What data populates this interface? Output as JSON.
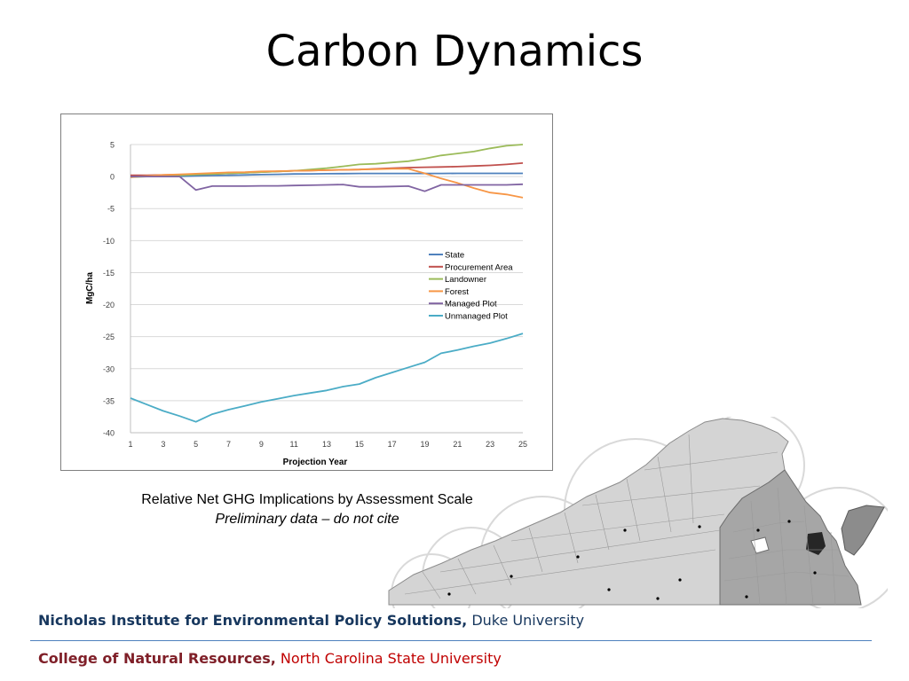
{
  "slide": {
    "title": "Carbon Dynamics",
    "caption_line1": "Relative Net GHG Implications by Assessment Scale",
    "caption_line2": "Preliminary data – do not cite"
  },
  "footer": {
    "line1_bold": "Nicholas Institute for Environmental Policy Solutions,",
    "line1_regular": " Duke University",
    "line2_bold": "College of Natural Resources,",
    "line2_regular": " North Carolina State University"
  },
  "chart_data": {
    "type": "line",
    "title": "",
    "xlabel": "Projection Year",
    "ylabel": "MgC/ha",
    "xlim": [
      1,
      25
    ],
    "ylim": [
      -40,
      5
    ],
    "x_ticks": [
      1,
      3,
      5,
      7,
      9,
      11,
      13,
      15,
      17,
      19,
      21,
      23,
      25
    ],
    "y_ticks": [
      5,
      0,
      -5,
      -10,
      -15,
      -20,
      -25,
      -30,
      -35,
      -40
    ],
    "grid": "horizontal",
    "legend_position": "right",
    "x": [
      1,
      2,
      3,
      4,
      5,
      6,
      7,
      8,
      9,
      10,
      11,
      12,
      13,
      14,
      15,
      16,
      17,
      18,
      19,
      20,
      21,
      22,
      23,
      24,
      25
    ],
    "series": [
      {
        "name": "State",
        "color": "#4f81bd",
        "values": [
          0.0,
          0.0,
          0.0,
          0.05,
          0.1,
          0.15,
          0.2,
          0.25,
          0.3,
          0.35,
          0.4,
          0.42,
          0.44,
          0.46,
          0.48,
          0.48,
          0.48,
          0.48,
          0.48,
          0.48,
          0.5,
          0.5,
          0.5,
          0.5,
          0.5
        ]
      },
      {
        "name": "Procurement Area",
        "color": "#c0504d",
        "values": [
          0.2,
          0.2,
          0.25,
          0.3,
          0.35,
          0.4,
          0.5,
          0.6,
          0.7,
          0.8,
          0.9,
          0.95,
          1.0,
          1.05,
          1.1,
          1.2,
          1.3,
          1.4,
          1.45,
          1.5,
          1.55,
          1.65,
          1.75,
          1.9,
          2.1
        ]
      },
      {
        "name": "Landowner",
        "color": "#9bbb59",
        "values": [
          -0.1,
          0.0,
          0.1,
          0.2,
          0.3,
          0.4,
          0.5,
          0.6,
          0.7,
          0.8,
          0.9,
          1.1,
          1.3,
          1.6,
          1.9,
          2.0,
          2.2,
          2.4,
          2.8,
          3.3,
          3.6,
          3.9,
          4.4,
          4.8,
          5.0
        ]
      },
      {
        "name": "Forest",
        "color": "#f79646",
        "values": [
          -0.1,
          0.1,
          0.25,
          0.35,
          0.45,
          0.55,
          0.65,
          0.7,
          0.8,
          0.85,
          0.9,
          0.95,
          1.0,
          1.05,
          1.1,
          1.15,
          1.2,
          1.2,
          0.5,
          -0.3,
          -1.0,
          -1.8,
          -2.5,
          -2.8,
          -3.3
        ]
      },
      {
        "name": "Managed Plot",
        "color": "#8064a2",
        "values": [
          0.0,
          0.0,
          0.0,
          0.0,
          -2.1,
          -1.5,
          -1.5,
          -1.5,
          -1.45,
          -1.45,
          -1.4,
          -1.35,
          -1.3,
          -1.25,
          -1.6,
          -1.6,
          -1.55,
          -1.5,
          -2.3,
          -1.3,
          -1.3,
          -1.3,
          -1.3,
          -1.3,
          -1.2
        ]
      },
      {
        "name": "Unmanaged Plot",
        "color": "#4bacc6",
        "values": [
          -34.6,
          -35.6,
          -36.6,
          -37.4,
          -38.3,
          -37.1,
          -36.4,
          -35.8,
          -35.2,
          -34.7,
          -34.2,
          -33.8,
          -33.4,
          -32.8,
          -32.4,
          -31.4,
          -30.6,
          -29.8,
          -29.0,
          -27.6,
          -27.1,
          -26.5,
          -26.0,
          -25.3,
          -24.5
        ]
      }
    ]
  }
}
